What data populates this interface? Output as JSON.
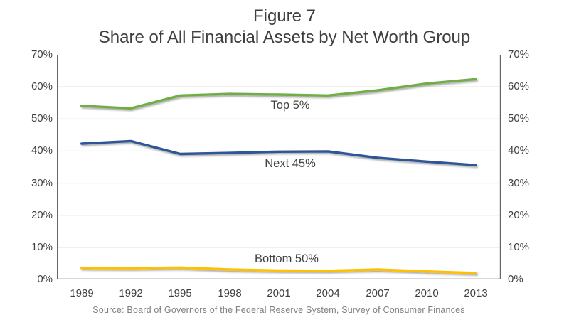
{
  "figure": {
    "title_line1": "Figure 7",
    "title_line2": "Share of All Financial Assets by Net Worth Group",
    "source": "Source: Board of Governors of the Federal Reserve System, Survey of Consumer Finances"
  },
  "chart_data": {
    "type": "line",
    "title": "Figure 7 — Share of All Financial Assets by Net Worth Group",
    "categories": [
      "1989",
      "1992",
      "1995",
      "1998",
      "2001",
      "2004",
      "2007",
      "2010",
      "2013"
    ],
    "series": [
      {
        "name": "Top 5%",
        "color": "#70ad47",
        "values": [
          54.1,
          53.3,
          57.3,
          57.8,
          57.6,
          57.3,
          58.9,
          61.0,
          62.4
        ]
      },
      {
        "name": "Next 45%",
        "color": "#2e5597",
        "values": [
          42.3,
          43.1,
          39.1,
          39.4,
          39.8,
          39.9,
          37.9,
          36.7,
          35.6
        ]
      },
      {
        "name": "Bottom 50%",
        "color": "#ffc000",
        "values": [
          3.6,
          3.5,
          3.7,
          3.1,
          2.8,
          2.7,
          3.1,
          2.5,
          2.0
        ]
      }
    ],
    "xlabel": "",
    "ylabel": "",
    "ylim": [
      0,
      70
    ],
    "y_tick_step": 10,
    "y_tick_suffix": "%",
    "y_axis_sides": [
      "left",
      "right"
    ],
    "grid": true,
    "legend": "inline-labels"
  },
  "colors": {
    "background": "#ffffff",
    "title_text": "#3f3f3f",
    "axis_text": "#404040",
    "source_text": "#7f7f7f",
    "gridline": "#d9d9d9",
    "axis_line": "#666666"
  }
}
